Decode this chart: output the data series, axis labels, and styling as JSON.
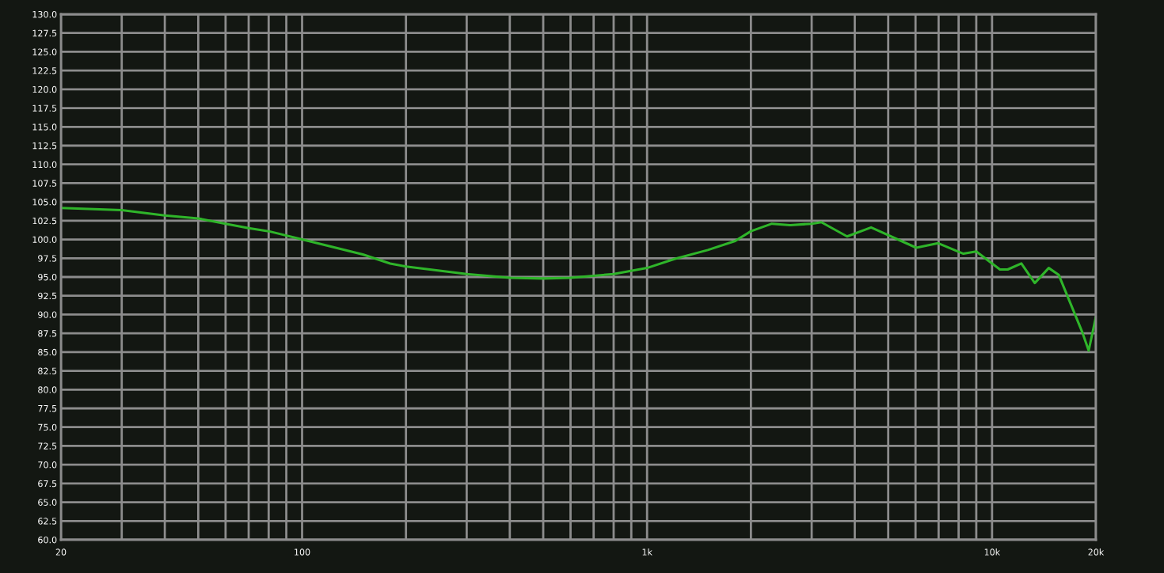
{
  "chart_data": {
    "type": "line",
    "log": "x",
    "grid": true,
    "marker": "none",
    "line_style": "solid",
    "x": [
      20,
      30,
      40,
      50,
      60,
      70,
      80,
      100,
      150,
      180,
      200,
      300,
      400,
      500,
      600,
      800,
      1000,
      1200,
      1500,
      1800,
      2000,
      2300,
      2600,
      3000,
      3200,
      3800,
      4460,
      6030,
      6980,
      8260,
      9000,
      10540,
      11100,
      12160,
      13300,
      14600,
      15600,
      18280,
      19060,
      20000
    ],
    "series": [
      {
        "color": "#2fb52a",
        "values": [
          104.2,
          103.9,
          103.2,
          102.8,
          102.1,
          101.5,
          101.1,
          100.0,
          98.0,
          96.8,
          96.4,
          95.4,
          94.9,
          94.8,
          94.9,
          95.4,
          96.2,
          97.4,
          98.6,
          99.8,
          101.1,
          102.1,
          101.9,
          102.1,
          102.3,
          100.4,
          101.6,
          98.9,
          99.5,
          98.1,
          98.4,
          96.0,
          96.0,
          96.8,
          94.2,
          96.2,
          95.3,
          87.6,
          85.2,
          89.7
        ]
      }
    ],
    "xlim": [
      20,
      20000
    ],
    "ylim": [
      60,
      130
    ],
    "xticks": [
      20,
      100,
      {
        "value": 1000,
        "label": "1k"
      },
      {
        "value": 10000,
        "label": "10k"
      },
      {
        "value": 20000,
        "label": "20k"
      }
    ],
    "yticks": [
      {
        "value": 60,
        "label": "60.0"
      },
      {
        "value": 62.5,
        "label": "62.5"
      },
      {
        "value": 65,
        "label": "65.0"
      },
      {
        "value": 67.5,
        "label": "67.5"
      },
      {
        "value": 70,
        "label": "70.0"
      },
      {
        "value": 72.5,
        "label": "72.5"
      },
      {
        "value": 75,
        "label": "75.0"
      },
      {
        "value": 77.5,
        "label": "77.5"
      },
      {
        "value": 80,
        "label": "80.0"
      },
      {
        "value": 82.5,
        "label": "82.5"
      },
      {
        "value": 85,
        "label": "85.0"
      },
      {
        "value": 87.5,
        "label": "87.5"
      },
      {
        "value": 90,
        "label": "90.0"
      },
      {
        "value": 92.5,
        "label": "92.5"
      },
      {
        "value": 95,
        "label": "95.0"
      },
      {
        "value": 97.5,
        "label": "97.5"
      },
      {
        "value": 100,
        "label": "100.0"
      },
      {
        "value": 102.5,
        "label": "102.5"
      },
      {
        "value": 105,
        "label": "105.0"
      },
      {
        "value": 107.5,
        "label": "107.5"
      },
      {
        "value": 110,
        "label": "110.0"
      },
      {
        "value": 112.5,
        "label": "112.5"
      },
      {
        "value": 115,
        "label": "115.0"
      },
      {
        "value": 117.5,
        "label": "117.5"
      },
      {
        "value": 120,
        "label": "120.0"
      },
      {
        "value": 122.5,
        "label": "122.5"
      },
      {
        "value": 125,
        "label": "125.0"
      },
      {
        "value": 127.5,
        "label": "127.5"
      },
      {
        "value": 130,
        "label": "130.0"
      }
    ]
  }
}
